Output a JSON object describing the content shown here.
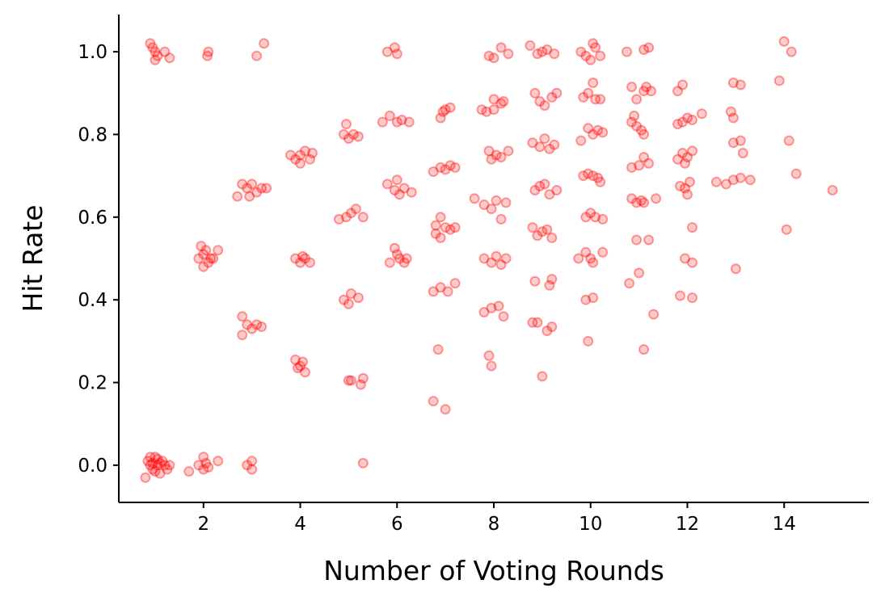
{
  "chart_data": {
    "type": "scatter",
    "title": "",
    "xlabel": "Number of Voting Rounds",
    "ylabel": "Hit Rate",
    "xlim": [
      0.25,
      15.75
    ],
    "ylim": [
      -0.09,
      1.09
    ],
    "x_ticks": [
      2,
      4,
      6,
      8,
      10,
      12,
      14
    ],
    "y_ticks": [
      0.0,
      0.2,
      0.4,
      0.6,
      0.8,
      1.0
    ],
    "x_tick_labels": [
      "2",
      "4",
      "6",
      "8",
      "10",
      "12",
      "14"
    ],
    "y_tick_labels": [
      "0.0",
      "0.2",
      "0.4",
      "0.6",
      "0.8",
      "1.0"
    ],
    "grid": false,
    "point_color": "#ff0000",
    "point_alpha": 0.2,
    "series": [
      {
        "points": [
          [
            0.9,
            1.02
          ],
          [
            1.0,
            1.0
          ],
          [
            1.05,
            0.99
          ],
          [
            1.0,
            0.98
          ],
          [
            1.2,
            1.0
          ],
          [
            1.3,
            0.985
          ],
          [
            0.95,
            1.01
          ],
          [
            2.1,
            1.0
          ],
          [
            2.08,
            0.99
          ],
          [
            3.1,
            0.99
          ],
          [
            3.25,
            1.02
          ],
          [
            0.8,
            -0.03
          ],
          [
            0.85,
            0.01
          ],
          [
            0.9,
            0.0
          ],
          [
            0.95,
            -0.01
          ],
          [
            1.0,
            0.02
          ],
          [
            1.05,
            0.0
          ],
          [
            1.1,
            -0.02
          ],
          [
            1.15,
            0.01
          ],
          [
            1.2,
            0.0
          ],
          [
            0.95,
            0.005
          ],
          [
            1.0,
            -0.015
          ],
          [
            1.05,
            0.015
          ],
          [
            1.1,
            0.005
          ],
          [
            1.3,
            0.0
          ],
          [
            0.9,
            0.02
          ],
          [
            1.25,
            -0.01
          ],
          [
            1.7,
            -0.015
          ],
          [
            1.9,
            0.0
          ],
          [
            2.0,
            0.02
          ],
          [
            2.05,
            0.005
          ],
          [
            2.1,
            -0.005
          ],
          [
            2.3,
            0.01
          ],
          [
            2.0,
            -0.01
          ],
          [
            2.9,
            0.0
          ],
          [
            3.0,
            0.01
          ],
          [
            3.0,
            -0.01
          ],
          [
            5.3,
            0.005
          ],
          [
            1.9,
            0.5
          ],
          [
            2.0,
            0.51
          ],
          [
            2.1,
            0.49
          ],
          [
            2.2,
            0.5
          ],
          [
            2.0,
            0.48
          ],
          [
            2.05,
            0.52
          ],
          [
            1.95,
            0.53
          ],
          [
            2.3,
            0.52
          ],
          [
            2.15,
            0.5
          ],
          [
            2.8,
            0.68
          ],
          [
            2.9,
            0.67
          ],
          [
            3.0,
            0.68
          ],
          [
            3.1,
            0.66
          ],
          [
            3.2,
            0.67
          ],
          [
            2.95,
            0.65
          ],
          [
            2.7,
            0.65
          ],
          [
            3.3,
            0.67
          ],
          [
            2.8,
            0.36
          ],
          [
            2.9,
            0.34
          ],
          [
            3.0,
            0.33
          ],
          [
            3.1,
            0.34
          ],
          [
            3.2,
            0.335
          ],
          [
            2.8,
            0.315
          ],
          [
            3.9,
            0.74
          ],
          [
            4.0,
            0.75
          ],
          [
            4.1,
            0.76
          ],
          [
            4.2,
            0.74
          ],
          [
            3.8,
            0.75
          ],
          [
            4.25,
            0.755
          ],
          [
            4.0,
            0.73
          ],
          [
            3.9,
            0.5
          ],
          [
            4.0,
            0.49
          ],
          [
            4.1,
            0.5
          ],
          [
            4.2,
            0.49
          ],
          [
            4.05,
            0.505
          ],
          [
            3.9,
            0.255
          ],
          [
            4.0,
            0.24
          ],
          [
            3.95,
            0.235
          ],
          [
            4.05,
            0.25
          ],
          [
            4.1,
            0.225
          ],
          [
            4.9,
            0.8
          ],
          [
            5.0,
            0.79
          ],
          [
            5.1,
            0.8
          ],
          [
            4.95,
            0.825
          ],
          [
            5.2,
            0.795
          ],
          [
            4.8,
            0.595
          ],
          [
            4.95,
            0.6
          ],
          [
            5.05,
            0.61
          ],
          [
            5.15,
            0.62
          ],
          [
            5.3,
            0.6
          ],
          [
            4.9,
            0.4
          ],
          [
            5.0,
            0.39
          ],
          [
            5.05,
            0.415
          ],
          [
            5.2,
            0.405
          ],
          [
            5.0,
            0.205
          ],
          [
            5.05,
            0.205
          ],
          [
            5.25,
            0.195
          ],
          [
            5.3,
            0.21
          ],
          [
            5.7,
            0.83
          ],
          [
            5.85,
            0.845
          ],
          [
            6.0,
            0.83
          ],
          [
            6.1,
            0.835
          ],
          [
            6.25,
            0.83
          ],
          [
            5.8,
            1.0
          ],
          [
            5.95,
            1.01
          ],
          [
            6.0,
            0.995
          ],
          [
            5.8,
            0.68
          ],
          [
            5.95,
            0.665
          ],
          [
            6.05,
            0.655
          ],
          [
            6.15,
            0.67
          ],
          [
            6.3,
            0.66
          ],
          [
            6.0,
            0.69
          ],
          [
            5.85,
            0.49
          ],
          [
            5.95,
            0.525
          ],
          [
            6.05,
            0.5
          ],
          [
            6.15,
            0.49
          ],
          [
            6.2,
            0.5
          ],
          [
            6.0,
            0.51
          ],
          [
            6.8,
            0.58
          ],
          [
            6.9,
            0.6
          ],
          [
            7.0,
            0.575
          ],
          [
            7.1,
            0.57
          ],
          [
            7.2,
            0.575
          ],
          [
            6.8,
            0.56
          ],
          [
            6.9,
            0.55
          ],
          [
            6.9,
            0.72
          ],
          [
            7.0,
            0.715
          ],
          [
            7.1,
            0.725
          ],
          [
            7.2,
            0.72
          ],
          [
            6.75,
            0.71
          ],
          [
            6.9,
            0.84
          ],
          [
            7.0,
            0.86
          ],
          [
            7.1,
            0.865
          ],
          [
            6.95,
            0.855
          ],
          [
            6.75,
            0.42
          ],
          [
            6.9,
            0.43
          ],
          [
            7.05,
            0.42
          ],
          [
            7.2,
            0.44
          ],
          [
            6.85,
            0.28
          ],
          [
            6.75,
            0.155
          ],
          [
            7.0,
            0.135
          ],
          [
            7.6,
            0.645
          ],
          [
            7.8,
            0.63
          ],
          [
            7.95,
            0.62
          ],
          [
            8.05,
            0.64
          ],
          [
            8.15,
            0.595
          ],
          [
            8.25,
            0.635
          ],
          [
            7.75,
            0.86
          ],
          [
            7.85,
            0.855
          ],
          [
            8.0,
            0.885
          ],
          [
            8.15,
            0.875
          ],
          [
            8.2,
            0.88
          ],
          [
            8.0,
            0.86
          ],
          [
            7.9,
            0.99
          ],
          [
            8.0,
            0.985
          ],
          [
            8.15,
            1.01
          ],
          [
            8.3,
            0.995
          ],
          [
            7.9,
            0.76
          ],
          [
            7.95,
            0.74
          ],
          [
            8.05,
            0.75
          ],
          [
            8.15,
            0.745
          ],
          [
            8.3,
            0.76
          ],
          [
            7.8,
            0.5
          ],
          [
            7.95,
            0.49
          ],
          [
            8.05,
            0.505
          ],
          [
            8.15,
            0.485
          ],
          [
            8.25,
            0.5
          ],
          [
            7.8,
            0.37
          ],
          [
            7.95,
            0.38
          ],
          [
            8.1,
            0.385
          ],
          [
            8.2,
            0.36
          ],
          [
            7.9,
            0.265
          ],
          [
            7.95,
            0.24
          ],
          [
            8.75,
            1.015
          ],
          [
            8.9,
            0.995
          ],
          [
            9.0,
            1.0
          ],
          [
            9.1,
            1.005
          ],
          [
            9.25,
            0.995
          ],
          [
            8.85,
            0.9
          ],
          [
            8.95,
            0.88
          ],
          [
            9.05,
            0.87
          ],
          [
            9.2,
            0.89
          ],
          [
            9.3,
            0.9
          ],
          [
            8.8,
            0.78
          ],
          [
            8.95,
            0.77
          ],
          [
            9.05,
            0.79
          ],
          [
            9.15,
            0.765
          ],
          [
            9.25,
            0.775
          ],
          [
            8.85,
            0.665
          ],
          [
            8.95,
            0.675
          ],
          [
            9.05,
            0.68
          ],
          [
            9.15,
            0.655
          ],
          [
            9.3,
            0.665
          ],
          [
            8.8,
            0.575
          ],
          [
            8.9,
            0.555
          ],
          [
            9.0,
            0.565
          ],
          [
            9.1,
            0.57
          ],
          [
            9.2,
            0.55
          ],
          [
            8.85,
            0.445
          ],
          [
            9.2,
            0.45
          ],
          [
            9.15,
            0.435
          ],
          [
            8.8,
            0.345
          ],
          [
            8.9,
            0.345
          ],
          [
            9.1,
            0.325
          ],
          [
            9.2,
            0.335
          ],
          [
            9.0,
            0.215
          ],
          [
            9.8,
            1.0
          ],
          [
            9.9,
            0.99
          ],
          [
            10.0,
            0.98
          ],
          [
            10.05,
            1.02
          ],
          [
            10.1,
            1.01
          ],
          [
            10.2,
            0.99
          ],
          [
            9.85,
            0.89
          ],
          [
            9.95,
            0.9
          ],
          [
            10.05,
            0.925
          ],
          [
            10.1,
            0.885
          ],
          [
            10.2,
            0.885
          ],
          [
            9.8,
            0.785
          ],
          [
            9.95,
            0.815
          ],
          [
            10.05,
            0.8
          ],
          [
            10.15,
            0.81
          ],
          [
            10.25,
            0.805
          ],
          [
            9.85,
            0.7
          ],
          [
            9.95,
            0.705
          ],
          [
            10.05,
            0.7
          ],
          [
            10.15,
            0.695
          ],
          [
            10.2,
            0.685
          ],
          [
            9.9,
            0.6
          ],
          [
            10.0,
            0.61
          ],
          [
            10.1,
            0.6
          ],
          [
            10.25,
            0.595
          ],
          [
            9.75,
            0.5
          ],
          [
            9.9,
            0.515
          ],
          [
            10.0,
            0.5
          ],
          [
            10.05,
            0.49
          ],
          [
            10.25,
            0.515
          ],
          [
            9.9,
            0.4
          ],
          [
            10.05,
            0.405
          ],
          [
            9.95,
            0.3
          ],
          [
            10.75,
            1.0
          ],
          [
            11.1,
            1.005
          ],
          [
            11.2,
            1.01
          ],
          [
            10.85,
            0.915
          ],
          [
            10.95,
            0.885
          ],
          [
            11.1,
            0.905
          ],
          [
            11.15,
            0.915
          ],
          [
            11.25,
            0.905
          ],
          [
            10.85,
            0.83
          ],
          [
            10.95,
            0.82
          ],
          [
            11.05,
            0.81
          ],
          [
            11.1,
            0.8
          ],
          [
            10.9,
            0.845
          ],
          [
            10.85,
            0.72
          ],
          [
            11.0,
            0.725
          ],
          [
            11.1,
            0.745
          ],
          [
            11.2,
            0.73
          ],
          [
            10.85,
            0.645
          ],
          [
            10.95,
            0.635
          ],
          [
            11.05,
            0.64
          ],
          [
            11.1,
            0.635
          ],
          [
            11.35,
            0.645
          ],
          [
            10.95,
            0.545
          ],
          [
            11.2,
            0.545
          ],
          [
            10.8,
            0.44
          ],
          [
            11.0,
            0.465
          ],
          [
            11.3,
            0.365
          ],
          [
            11.1,
            0.28
          ],
          [
            11.8,
            0.905
          ],
          [
            11.9,
            0.92
          ],
          [
            11.8,
            0.825
          ],
          [
            11.9,
            0.83
          ],
          [
            12.0,
            0.84
          ],
          [
            12.1,
            0.835
          ],
          [
            12.3,
            0.85
          ],
          [
            11.8,
            0.74
          ],
          [
            11.9,
            0.755
          ],
          [
            12.0,
            0.745
          ],
          [
            12.1,
            0.76
          ],
          [
            11.95,
            0.73
          ],
          [
            11.85,
            0.675
          ],
          [
            11.95,
            0.67
          ],
          [
            12.05,
            0.685
          ],
          [
            12.0,
            0.655
          ],
          [
            12.1,
            0.575
          ],
          [
            11.95,
            0.5
          ],
          [
            12.1,
            0.49
          ],
          [
            11.85,
            0.41
          ],
          [
            12.1,
            0.405
          ],
          [
            12.6,
            0.685
          ],
          [
            12.8,
            0.68
          ],
          [
            12.95,
            0.69
          ],
          [
            13.1,
            0.695
          ],
          [
            13.3,
            0.69
          ],
          [
            12.9,
            0.855
          ],
          [
            12.95,
            0.84
          ],
          [
            12.95,
            0.925
          ],
          [
            13.1,
            0.92
          ],
          [
            12.95,
            0.78
          ],
          [
            13.1,
            0.785
          ],
          [
            13.15,
            0.755
          ],
          [
            13.0,
            0.475
          ],
          [
            13.9,
            0.93
          ],
          [
            14.0,
            1.025
          ],
          [
            14.15,
            1.0
          ],
          [
            14.1,
            0.785
          ],
          [
            14.25,
            0.705
          ],
          [
            14.05,
            0.57
          ],
          [
            15.0,
            0.665
          ]
        ]
      }
    ]
  }
}
